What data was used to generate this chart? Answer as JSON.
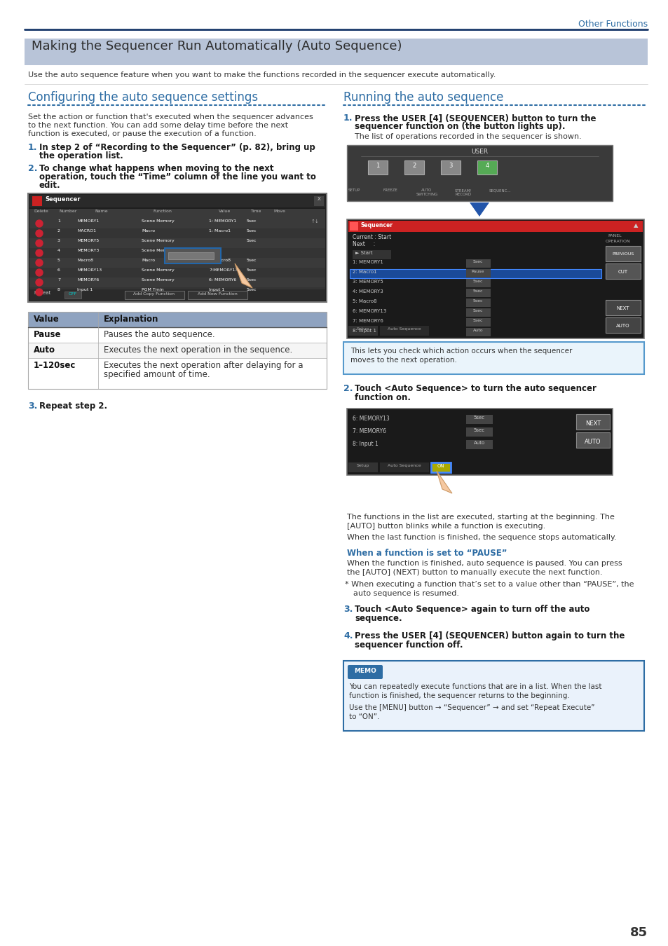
{
  "page_bg": "#ffffff",
  "header_line_color": "#1a3a6b",
  "header_text": "Other Functions",
  "header_text_color": "#2e6da4",
  "title_bg": "#b8c4d8",
  "title_text": "Making the Sequencer Run Automatically (Auto Sequence)",
  "title_text_color": "#2d2d2d",
  "subtitle_text": "Use the auto sequence feature when you want to make the functions recorded in the sequencer execute automatically.",
  "subtitle_color": "#333333",
  "left_section_title": "Configuring the auto sequence settings",
  "right_section_title": "Running the auto sequence",
  "section_title_color": "#2e6da4",
  "dot_color": "#2e6da4",
  "body_color": "#333333",
  "step_num_color": "#2e6da4",
  "step_bold_color": "#1a1a1a",
  "table_header_bg": "#8fa3c0",
  "table_border": "#aaaaaa",
  "memo_bg": "#eaf2fb",
  "memo_border": "#2e6da4",
  "page_number": "85",
  "blue_heading": "#2e6da4",
  "info_box_bg": "#eaf4fb",
  "info_box_border": "#5599cc"
}
